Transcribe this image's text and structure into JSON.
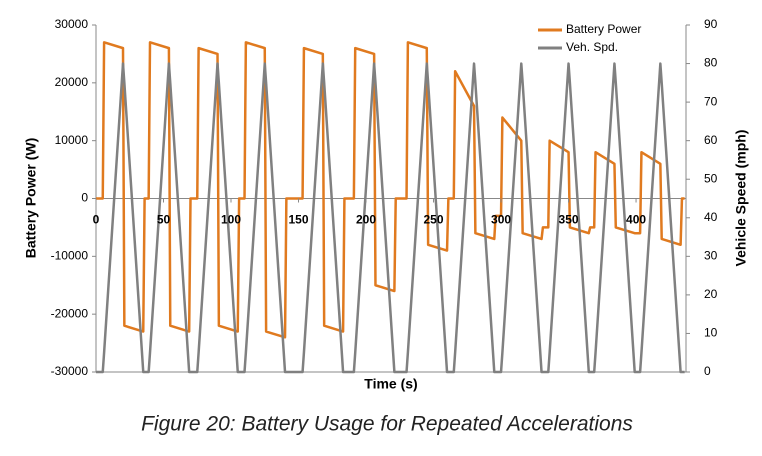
{
  "chart_data": {
    "type": "line",
    "xlabel": "Time (s)",
    "ylabel": "Battery Power (W)",
    "y2label": "Vehicle Speed (mph)",
    "caption": "Figure 20: Battery Usage for Repeated Accelerations",
    "legend": "upper right",
    "xlim": [
      0,
      437
    ],
    "xticks": [
      0,
      50,
      100,
      150,
      200,
      250,
      300,
      350,
      400
    ],
    "ylim": [
      -30000,
      30000
    ],
    "yticks": [
      -30000,
      -20000,
      -10000,
      0,
      10000,
      20000,
      30000
    ],
    "y2lim": [
      0,
      90
    ],
    "y2ticks": [
      0,
      10,
      20,
      30,
      40,
      50,
      60,
      70,
      80,
      90
    ],
    "grid": false,
    "x": [
      0,
      5,
      6,
      20,
      21,
      35,
      36,
      39,
      40,
      54,
      55,
      69,
      70,
      75,
      76,
      90,
      91,
      105,
      106,
      110,
      111,
      125,
      126,
      140,
      141,
      153,
      154,
      168,
      169,
      183,
      184,
      191,
      192,
      206,
      207,
      221,
      222,
      230,
      231,
      245,
      246,
      260,
      261,
      265,
      266,
      280,
      281,
      295,
      296,
      300,
      301,
      315,
      316,
      330,
      331,
      335,
      336,
      350,
      351,
      365,
      366,
      369,
      370,
      384,
      385,
      399,
      400,
      403,
      404,
      418,
      419,
      433,
      434,
      436
    ],
    "series": [
      {
        "name": "Battery Power",
        "color": "#e07a1f",
        "axis": "y",
        "values": [
          0,
          0,
          27000,
          26000,
          -22000,
          -23000,
          0,
          0,
          27000,
          26000,
          -22000,
          -23000,
          0,
          0,
          26000,
          25000,
          -22000,
          -23000,
          0,
          0,
          27000,
          26000,
          -23000,
          -24000,
          0,
          0,
          26000,
          25000,
          -22000,
          -23000,
          0,
          0,
          26000,
          25000,
          -15000,
          -16000,
          0,
          0,
          27000,
          26000,
          -8000,
          -9000,
          0,
          0,
          22000,
          16000,
          -6000,
          -7000,
          -3000,
          -3000,
          14000,
          10000,
          -6000,
          -7000,
          -5000,
          -5000,
          10000,
          8000,
          -5000,
          -6000,
          -5000,
          -5000,
          8000,
          6000,
          -5000,
          -6000,
          -6000,
          -6000,
          8000,
          6000,
          -7000,
          -8000,
          0,
          0
        ]
      },
      {
        "name": "Veh. Spd.",
        "color": "#808080",
        "axis": "y2",
        "values": [
          0,
          0,
          5,
          80,
          75,
          0,
          0,
          0,
          5,
          80,
          75,
          0,
          0,
          0,
          5,
          80,
          75,
          0,
          0,
          0,
          5,
          80,
          75,
          0,
          0,
          0,
          5,
          80,
          75,
          0,
          0,
          0,
          5,
          80,
          75,
          0,
          0,
          0,
          5,
          80,
          75,
          0,
          0,
          0,
          5,
          80,
          75,
          0,
          0,
          0,
          5,
          80,
          75,
          0,
          0,
          0,
          5,
          80,
          75,
          0,
          0,
          0,
          5,
          80,
          75,
          0,
          0,
          0,
          5,
          80,
          75,
          0,
          0,
          0
        ]
      }
    ]
  }
}
